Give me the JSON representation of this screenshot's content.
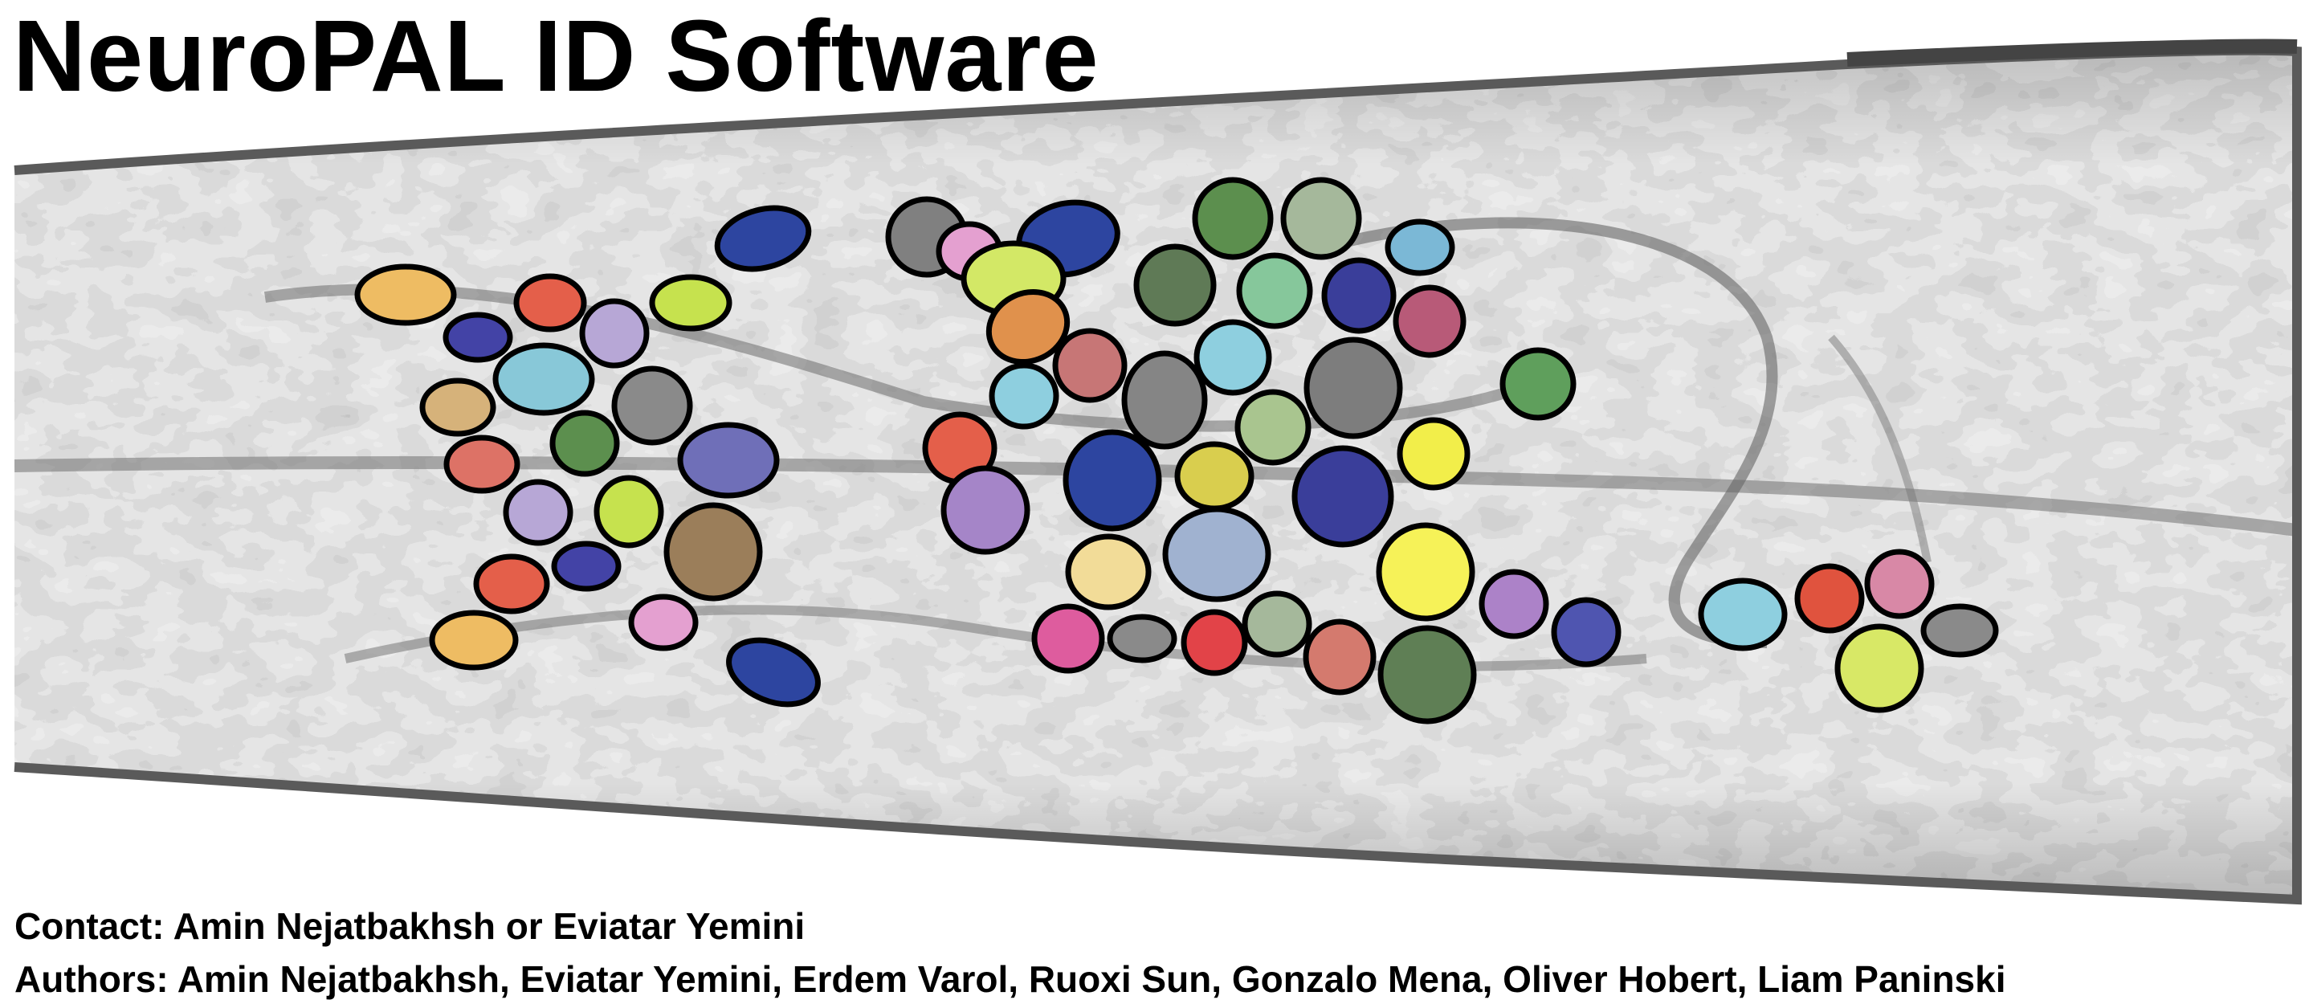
{
  "title": "NeuroPAL ID Software",
  "contact": "Contact: Amin Nejatbakhsh or Eviatar Yemini",
  "authors": "Authors: Amin Nejatbakhsh, Eviatar Yemini, Erdem Varol, Ruoxi Sun, Gonzalo Mena, Oliver Hobert, Liam Paninski",
  "colors": {
    "worm_outline": "#555555",
    "worm_light": "#d8d8d8",
    "worm_mid": "#bdbdbd",
    "worm_dark": "#8a8a8a",
    "neuron_outline": "#000000"
  }
}
